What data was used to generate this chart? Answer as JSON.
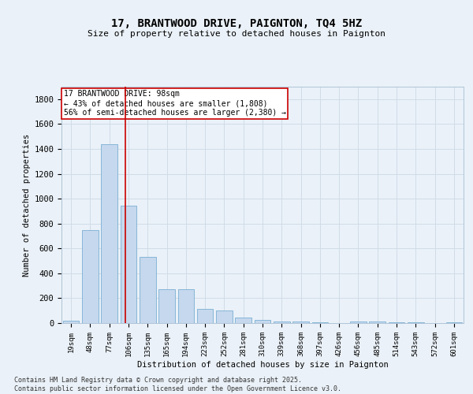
{
  "title": "17, BRANTWOOD DRIVE, PAIGNTON, TQ4 5HZ",
  "subtitle": "Size of property relative to detached houses in Paignton",
  "xlabel": "Distribution of detached houses by size in Paignton",
  "ylabel": "Number of detached properties",
  "categories": [
    "19sqm",
    "48sqm",
    "77sqm",
    "106sqm",
    "135sqm",
    "165sqm",
    "194sqm",
    "223sqm",
    "252sqm",
    "281sqm",
    "310sqm",
    "339sqm",
    "368sqm",
    "397sqm",
    "426sqm",
    "456sqm",
    "485sqm",
    "514sqm",
    "543sqm",
    "572sqm",
    "601sqm"
  ],
  "values": [
    20,
    750,
    1435,
    945,
    535,
    270,
    270,
    115,
    100,
    45,
    25,
    10,
    10,
    5,
    0,
    15,
    15,
    5,
    5,
    0,
    5
  ],
  "bar_color": "#c5d8ed",
  "bar_edge_color": "#7aafd4",
  "vline_x": 2.85,
  "vline_color": "#cc0000",
  "annotation_title": "17 BRANTWOOD DRIVE: 98sqm",
  "annotation_line1": "← 43% of detached houses are smaller (1,808)",
  "annotation_line2": "56% of semi-detached houses are larger (2,380) →",
  "annotation_box_color": "#ffffff",
  "annotation_box_edge": "#cc0000",
  "ylim": [
    0,
    1900
  ],
  "yticks": [
    0,
    200,
    400,
    600,
    800,
    1000,
    1200,
    1400,
    1600,
    1800
  ],
  "grid_color": "#d0dce8",
  "background_color": "#eaf1f8",
  "footer_line1": "Contains HM Land Registry data © Crown copyright and database right 2025.",
  "footer_line2": "Contains public sector information licensed under the Open Government Licence v3.0."
}
